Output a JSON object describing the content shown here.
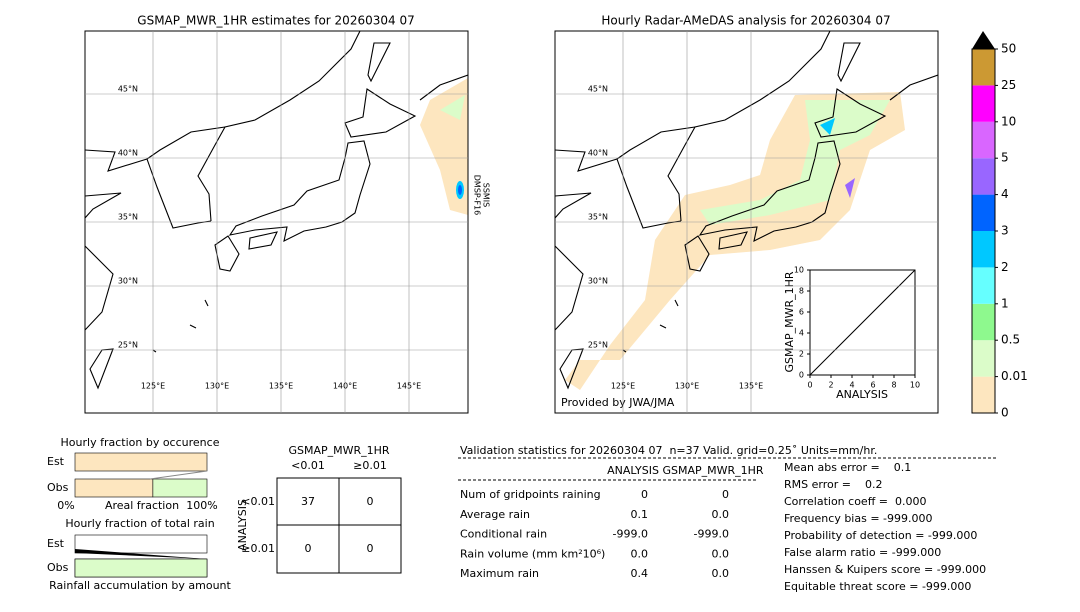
{
  "left_map": {
    "title": "GSMAP_MWR_1HR estimates for 20260304 07",
    "lat_labels": [
      "45°N",
      "40°N",
      "35°N",
      "30°N",
      "25°N"
    ],
    "lon_labels": [
      "125°E",
      "130°E",
      "135°E",
      "140°E",
      "145°E"
    ],
    "swath_label": [
      "DMSP-F16",
      "SSMIS"
    ]
  },
  "right_map": {
    "title": "Hourly Radar-AMeDAS analysis for 20260304 07",
    "lat_labels": [
      "45°N",
      "40°N",
      "35°N",
      "30°N",
      "25°N"
    ],
    "lon_labels": [
      "125°E",
      "130°E",
      "135°E"
    ],
    "credit": "Provided by JWA/JMA",
    "inset": {
      "ylabel": "GSMAP_MWR_1HR",
      "xlabel": "ANALYSIS",
      "lim": [
        0,
        10
      ],
      "ticks": [
        0,
        2,
        4,
        6,
        8,
        10
      ]
    }
  },
  "colorbar": {
    "labels": [
      0,
      0.01,
      0.5,
      1,
      2,
      3,
      4,
      5,
      10,
      25,
      50
    ],
    "colors": [
      "#fde6bf",
      "#dbfcc9",
      "#8ef98e",
      "#66ffff",
      "#00c8ff",
      "#0064ff",
      "#9966ff",
      "#d966ff",
      "#ff00ff",
      "#cc9933"
    ]
  },
  "fraction_occurrence": {
    "title": "Hourly fraction by occurence",
    "rows": [
      {
        "label": "Est",
        "values": [
          100,
          0
        ]
      },
      {
        "label": "Obs",
        "values": [
          59,
          41
        ]
      }
    ],
    "axis": [
      "0%",
      "Areal fraction",
      "100%"
    ]
  },
  "fraction_total": {
    "title": "Hourly fraction of total rain",
    "rows": [
      {
        "label": "Est",
        "values": [
          0
        ]
      },
      {
        "label": "Obs",
        "values": [
          100
        ]
      }
    ],
    "axis": "Rainfall accumulation by amount"
  },
  "contingency": {
    "title": "GSMAP_MWR_1HR",
    "columns": [
      "<0.01",
      "≥0.01"
    ],
    "axis_label": "ANALYSIS",
    "rows": [
      {
        "label": "<0.01",
        "cells": [
          "37",
          "0"
        ]
      },
      {
        "label": "≥0.01",
        "cells": [
          "0",
          "0"
        ]
      }
    ]
  },
  "validation": {
    "header": "Validation statistics for 20260304 07  n=37 Valid. grid=0.25˚ Units=mm/hr.",
    "columns": [
      "ANALYSIS",
      "GSMAP_MWR_1HR"
    ],
    "rows": [
      {
        "label": "Num of gridpoints raining",
        "values": [
          "0",
          "0"
        ]
      },
      {
        "label": "Average rain",
        "values": [
          "0.1",
          "0.0"
        ]
      },
      {
        "label": "Conditional rain",
        "values": [
          "-999.0",
          "-999.0"
        ]
      },
      {
        "label": "Rain volume (mm km²10⁶)",
        "values": [
          "0.0",
          "0.0"
        ]
      },
      {
        "label": "Maximum rain",
        "values": [
          "0.4",
          "0.0"
        ]
      }
    ],
    "scores": [
      "Mean abs error =    0.1",
      "RMS error =    0.2",
      "Correlation coeff =  0.000",
      "Frequency bias = -999.000",
      "Probability of detection = -999.000",
      "False alarm ratio = -999.000",
      "Hanssen & Kuipers score = -999.000",
      "Equitable threat score = -999.000"
    ]
  }
}
